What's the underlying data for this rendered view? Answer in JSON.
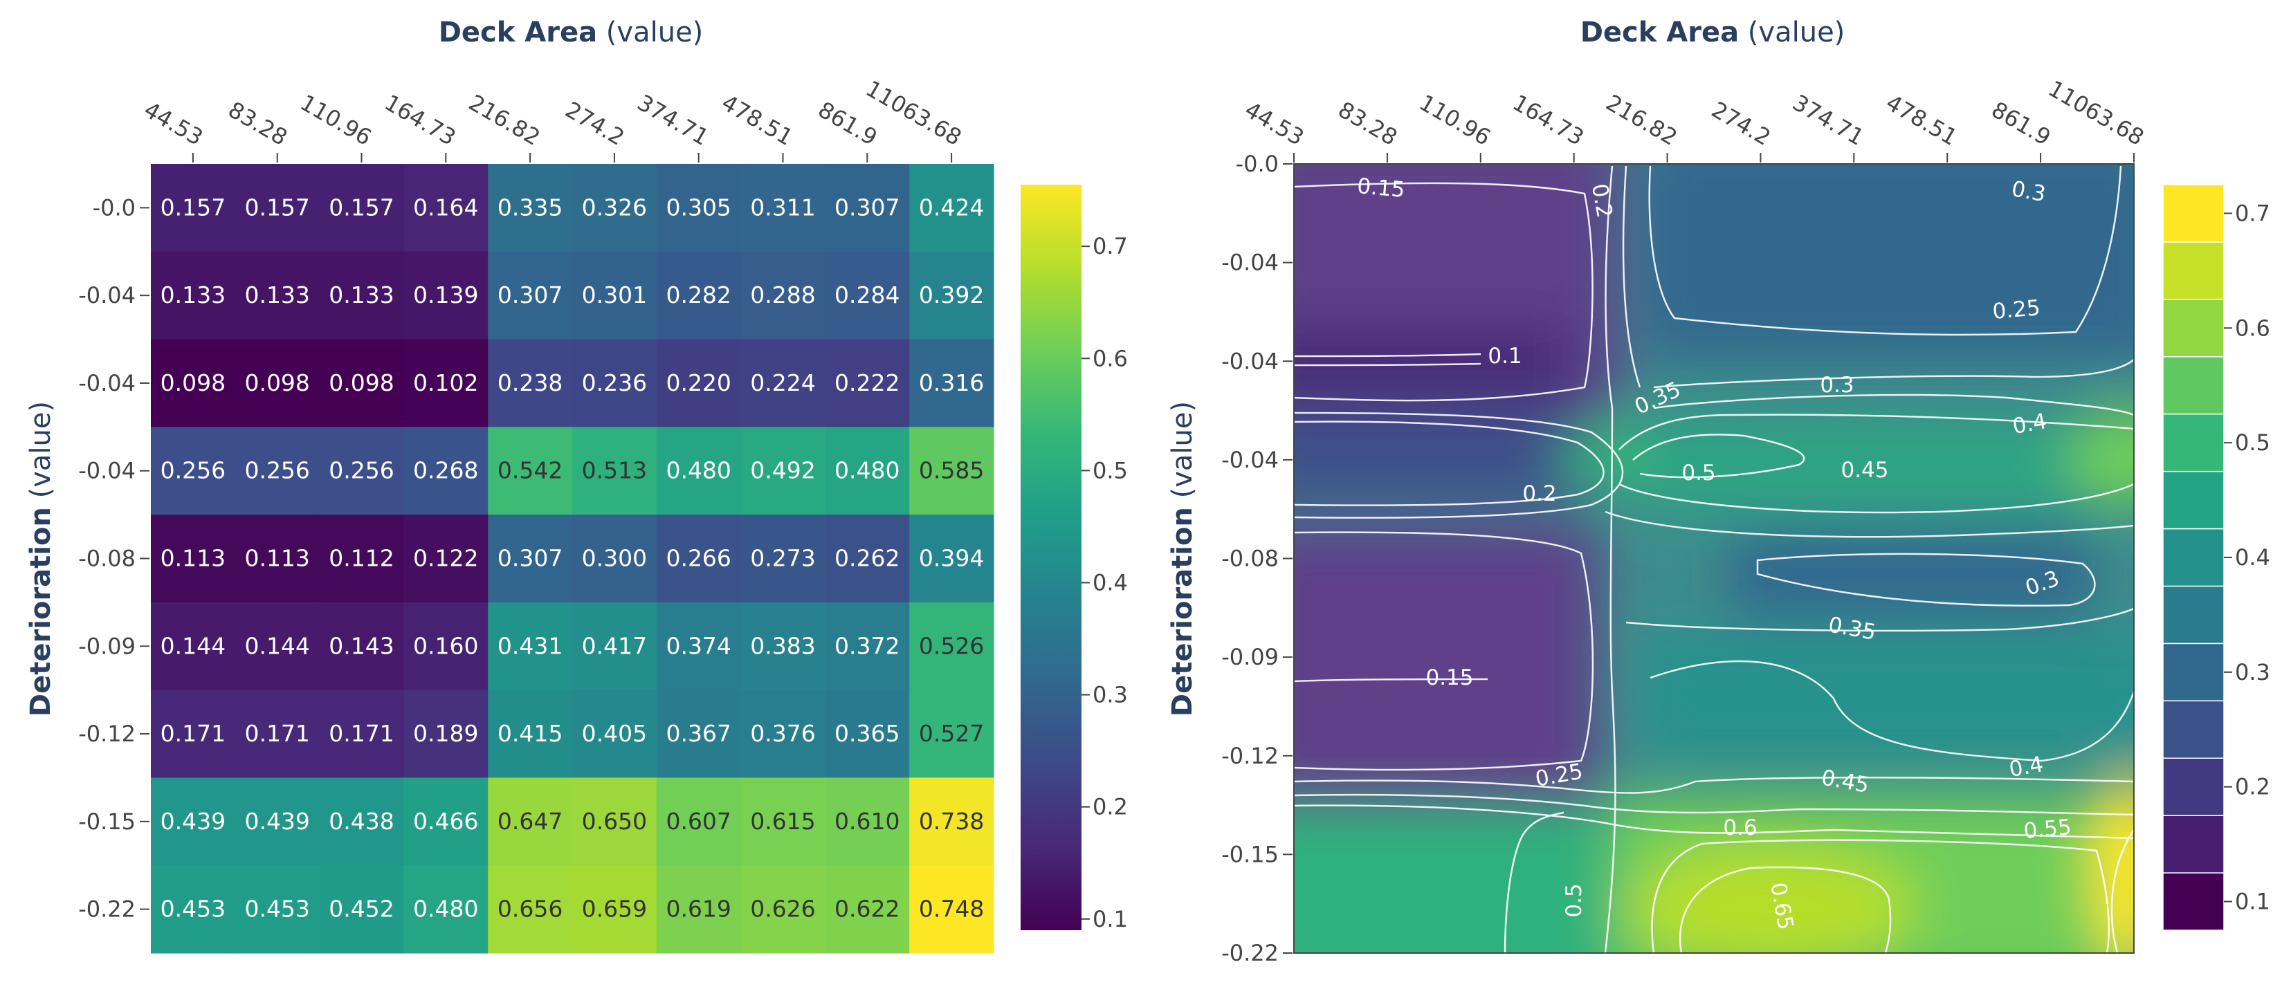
{
  "chart_data": [
    {
      "type": "heatmap",
      "title": "",
      "xlabel_bold": "Deck Area",
      "xlabel_suffix": " (value)",
      "ylabel_bold": "Deterioration",
      "ylabel_suffix": " (value)",
      "x_ticks": [
        "44.53",
        "83.28",
        "110.96",
        "164.73",
        "216.82",
        "274.2",
        "374.71",
        "478.51",
        "861.9",
        "11063.68"
      ],
      "y_ticks": [
        "-0.0",
        "-0.04",
        "-0.04",
        "-0.04",
        "-0.08",
        "-0.09",
        "-0.12",
        "-0.15",
        "-0.22"
      ],
      "values": [
        [
          0.157,
          0.157,
          0.157,
          0.164,
          0.335,
          0.326,
          0.305,
          0.311,
          0.307,
          0.424
        ],
        [
          0.133,
          0.133,
          0.133,
          0.139,
          0.307,
          0.301,
          0.282,
          0.288,
          0.284,
          0.392
        ],
        [
          0.098,
          0.098,
          0.098,
          0.102,
          0.238,
          0.236,
          0.22,
          0.224,
          0.222,
          0.316
        ],
        [
          0.256,
          0.256,
          0.256,
          0.268,
          0.542,
          0.513,
          0.48,
          0.492,
          0.48,
          0.585
        ],
        [
          0.113,
          0.113,
          0.112,
          0.122,
          0.307,
          0.3,
          0.266,
          0.273,
          0.262,
          0.394
        ],
        [
          0.144,
          0.144,
          0.143,
          0.16,
          0.431,
          0.417,
          0.374,
          0.383,
          0.372,
          0.526
        ],
        [
          0.171,
          0.171,
          0.171,
          0.189,
          0.415,
          0.405,
          0.367,
          0.376,
          0.365,
          0.527
        ],
        [
          0.439,
          0.439,
          0.438,
          0.466,
          0.647,
          0.65,
          0.607,
          0.615,
          0.61,
          0.738
        ],
        [
          0.453,
          0.453,
          0.452,
          0.48,
          0.656,
          0.659,
          0.619,
          0.626,
          0.622,
          0.748
        ]
      ],
      "value_labels": [
        [
          "0.157",
          "0.157",
          "0.157",
          "0.164",
          "0.335",
          "0.326",
          "0.305",
          "0.311",
          "0.307",
          "0.424"
        ],
        [
          "0.133",
          "0.133",
          "0.133",
          "0.139",
          "0.307",
          "0.301",
          "0.282",
          "0.288",
          "0.284",
          "0.392"
        ],
        [
          "0.098",
          "0.098",
          "0.098",
          "0.102",
          "0.238",
          "0.236",
          "0.220",
          "0.224",
          "0.222",
          "0.316"
        ],
        [
          "0.256",
          "0.256",
          "0.256",
          "0.268",
          "0.542",
          "0.513",
          "0.480",
          "0.492",
          "0.480",
          "0.585"
        ],
        [
          "0.113",
          "0.113",
          "0.112",
          "0.122",
          "0.307",
          "0.300",
          "0.266",
          "0.273",
          "0.262",
          "0.394"
        ],
        [
          "0.144",
          "0.144",
          "0.143",
          "0.160",
          "0.431",
          "0.417",
          "0.374",
          "0.383",
          "0.372",
          "0.526"
        ],
        [
          "0.171",
          "0.171",
          "0.171",
          "0.189",
          "0.415",
          "0.405",
          "0.367",
          "0.376",
          "0.365",
          "0.527"
        ],
        [
          "0.439",
          "0.439",
          "0.438",
          "0.466",
          "0.647",
          "0.650",
          "0.607",
          "0.615",
          "0.610",
          "0.738"
        ],
        [
          "0.453",
          "0.453",
          "0.452",
          "0.480",
          "0.656",
          "0.659",
          "0.619",
          "0.626",
          "0.622",
          "0.748"
        ]
      ],
      "colorscale": "viridis",
      "zmin": 0.098,
      "zmax": 0.748,
      "colorbar_ticks": [
        0.1,
        0.2,
        0.3,
        0.4,
        0.5,
        0.6,
        0.7
      ],
      "colorbar_tick_labels": [
        "0.1",
        "0.2",
        "0.3",
        "0.4",
        "0.5",
        "0.6",
        "0.7"
      ]
    },
    {
      "type": "contour",
      "title": "",
      "xlabel_bold": "Deck Area",
      "xlabel_suffix": " (value)",
      "ylabel_bold": "Deterioration",
      "ylabel_suffix": " (value)",
      "x_ticks": [
        "44.53",
        "83.28",
        "110.96",
        "164.73",
        "216.82",
        "274.2",
        "374.71",
        "478.51",
        "861.9",
        "11063.68"
      ],
      "y_ticks": [
        "-0.0",
        "-0.04",
        "-0.04",
        "-0.04",
        "-0.08",
        "-0.09",
        "-0.12",
        "-0.15",
        "-0.22"
      ],
      "contour_levels": [
        0.1,
        0.15,
        0.2,
        0.25,
        0.3,
        0.35,
        0.4,
        0.45,
        0.5,
        0.55,
        0.6,
        0.65,
        0.7
      ],
      "contour_labels": [
        "0.1",
        "0.15",
        "0.2",
        "0.25",
        "0.3",
        "0.35",
        "0.4",
        "0.45",
        "0.5",
        "0.55",
        "0.6",
        "0.65"
      ],
      "colorbar_ticks": [
        0.1,
        0.2,
        0.3,
        0.4,
        0.5,
        0.6,
        0.7
      ],
      "colorbar_tick_labels": [
        "0.1",
        "0.2",
        "0.3",
        "0.4",
        "0.5",
        "0.6",
        "0.7"
      ]
    }
  ]
}
